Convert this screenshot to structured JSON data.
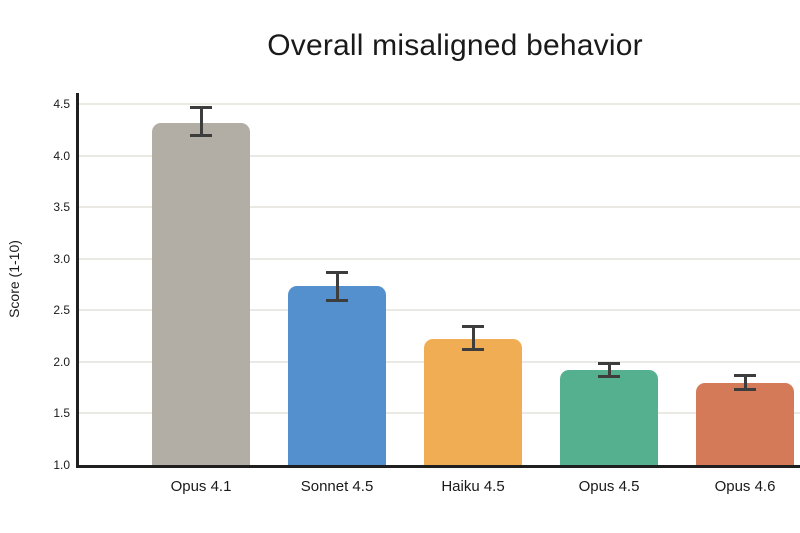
{
  "chart_data": {
    "type": "bar",
    "title": "Overall misaligned behavior",
    "xlabel": "",
    "ylabel": "Score (1-10)",
    "categories": [
      "Opus 4.1",
      "Sonnet 4.5",
      "Haiku 4.5",
      "Opus 4.5",
      "Opus 4.6"
    ],
    "values": [
      4.32,
      2.74,
      2.22,
      1.92,
      1.8
    ],
    "error_low": [
      4.18,
      2.58,
      2.11,
      1.84,
      1.72
    ],
    "error_high": [
      4.48,
      2.88,
      2.36,
      2.0,
      1.88
    ],
    "bar_colors": [
      "#b2aea5",
      "#5390cd",
      "#f0ad53",
      "#54b08e",
      "#d47a58"
    ],
    "ylim": [
      1.0,
      4.61
    ],
    "yticks": [
      1.0,
      1.5,
      2.0,
      2.5,
      3.0,
      3.5,
      4.0,
      4.5
    ],
    "ytick_labels": [
      "1.0",
      "1.5",
      "2.0",
      "2.5",
      "3.0",
      "3.5",
      "4.0",
      "4.5"
    ],
    "grid": true,
    "legend": false,
    "colors": {
      "text": "#1a1a1a",
      "axis": "#1f1f1f",
      "gridline": "#ebe9e4",
      "error_bar": "#3d3d3d",
      "background": "#ffffff"
    }
  }
}
